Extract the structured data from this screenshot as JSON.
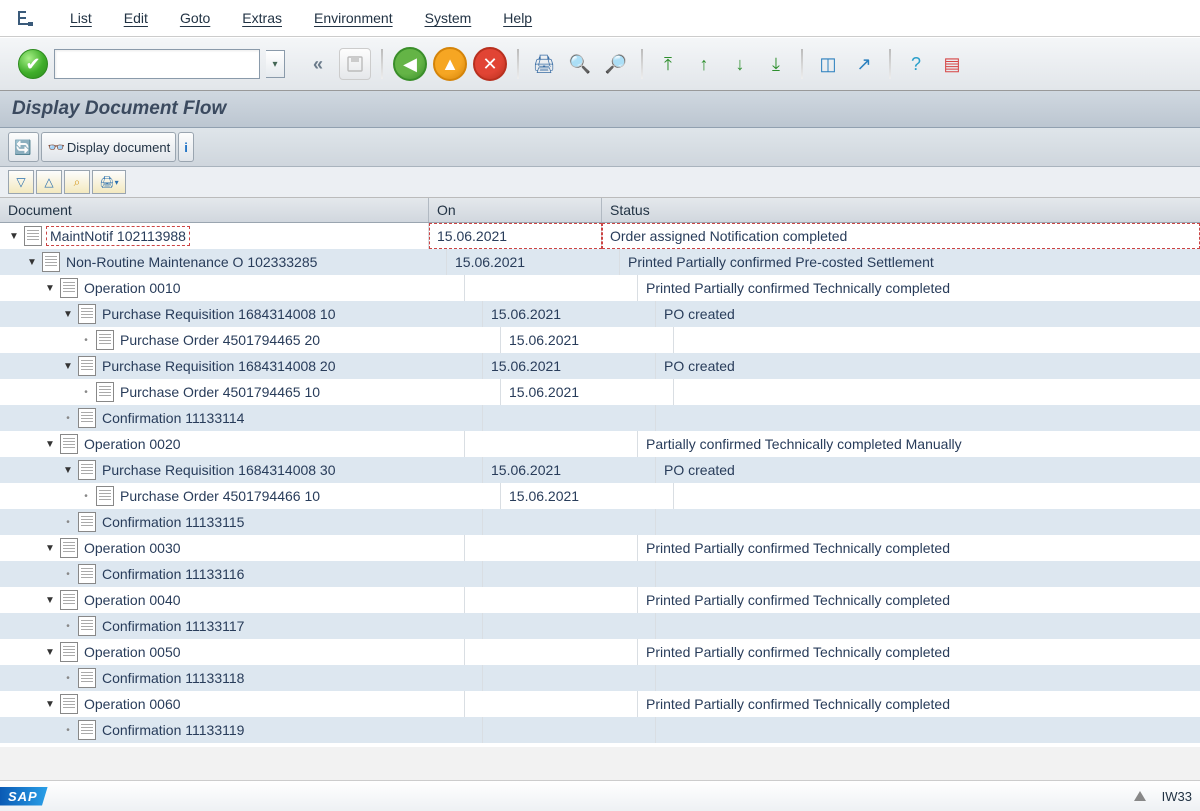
{
  "menu": {
    "items": [
      "List",
      "Edit",
      "Goto",
      "Extras",
      "Environment",
      "System",
      "Help"
    ]
  },
  "toolbar": {
    "collapse": "«",
    "icons": [
      {
        "name": "back-icon",
        "glyph": "◀",
        "bg": "#64b446",
        "bd": "#3a8e2a",
        "style": "round"
      },
      {
        "name": "exit-icon",
        "glyph": "▲",
        "bg": "#f6a623",
        "bd": "#d4840a",
        "style": "round"
      },
      {
        "name": "cancel-icon",
        "glyph": "✕",
        "bg": "#e14434",
        "bd": "#b8301f",
        "style": "round"
      },
      {
        "name": "sep"
      },
      {
        "name": "print-icon",
        "glyph": "🖨",
        "color": "#3a6ea5"
      },
      {
        "name": "find-icon",
        "glyph": "🔍",
        "color": "#3a6ea5"
      },
      {
        "name": "find-next-icon",
        "glyph": "🔎",
        "color": "#3a6ea5"
      },
      {
        "name": "sep"
      },
      {
        "name": "first-icon",
        "glyph": "⤒",
        "color": "#2e8f2e"
      },
      {
        "name": "prev-icon",
        "glyph": "↑",
        "color": "#2e8f2e"
      },
      {
        "name": "next-icon",
        "glyph": "↓",
        "color": "#2e8f2e"
      },
      {
        "name": "last-icon",
        "glyph": "⤓",
        "color": "#2e8f2e"
      },
      {
        "name": "sep"
      },
      {
        "name": "new-session-icon",
        "glyph": "◫",
        "color": "#2a7fbe"
      },
      {
        "name": "shortcut-icon",
        "glyph": "↗",
        "color": "#2a7fbe"
      },
      {
        "name": "sep"
      },
      {
        "name": "help-icon",
        "glyph": "?",
        "color": "#2a9fca"
      },
      {
        "name": "layout-icon",
        "glyph": "▤",
        "color": "#d64545"
      }
    ]
  },
  "title": "Display Document Flow",
  "app_toolbar": {
    "refresh": "",
    "display_doc": "Display document"
  },
  "columns": {
    "doc": "Document",
    "on": "On",
    "status": "Status"
  },
  "rows": [
    {
      "indent": 1,
      "toggle": "▼",
      "label": "MaintNotif 102113988",
      "on": "15.06.2021",
      "status": "Order assigned Notification completed",
      "sel": true,
      "alt": false
    },
    {
      "indent": 2,
      "toggle": "▼",
      "label": "Non-Routine Maintenance O 102333285",
      "on": "15.06.2021",
      "status": "Printed Partially confirmed Pre-costed Settlement",
      "alt": true
    },
    {
      "indent": 3,
      "toggle": "▼",
      "label": "Operation 0010",
      "on": "",
      "status": "Printed Partially confirmed Technically completed",
      "alt": false
    },
    {
      "indent": 4,
      "toggle": "▼",
      "label": "Purchase Requisition 1684314008 10",
      "on": "15.06.2021",
      "status": "PO created",
      "alt": true
    },
    {
      "indent": 5,
      "toggle": "•",
      "label": "Purchase Order 4501794465 20",
      "on": "15.06.2021",
      "status": "",
      "alt": false
    },
    {
      "indent": 4,
      "toggle": "▼",
      "label": "Purchase Requisition 1684314008 20",
      "on": "15.06.2021",
      "status": "PO created",
      "alt": true
    },
    {
      "indent": 5,
      "toggle": "•",
      "label": "Purchase Order 4501794465 10",
      "on": "15.06.2021",
      "status": "",
      "alt": false
    },
    {
      "indent": 4,
      "toggle": "•",
      "label": "Confirmation 11133114",
      "on": "",
      "status": "",
      "alt": true
    },
    {
      "indent": 3,
      "toggle": "▼",
      "label": "Operation 0020",
      "on": "",
      "status": "Partially confirmed Technically completed Manually",
      "alt": false
    },
    {
      "indent": 4,
      "toggle": "▼",
      "label": "Purchase Requisition 1684314008 30",
      "on": "15.06.2021",
      "status": "PO created",
      "alt": true
    },
    {
      "indent": 5,
      "toggle": "•",
      "label": "Purchase Order 4501794466 10",
      "on": "15.06.2021",
      "status": "",
      "alt": false
    },
    {
      "indent": 4,
      "toggle": "•",
      "label": "Confirmation 11133115",
      "on": "",
      "status": "",
      "alt": true
    },
    {
      "indent": 3,
      "toggle": "▼",
      "label": "Operation 0030",
      "on": "",
      "status": "Printed Partially confirmed Technically completed",
      "alt": false
    },
    {
      "indent": 4,
      "toggle": "•",
      "label": "Confirmation 11133116",
      "on": "",
      "status": "",
      "alt": true
    },
    {
      "indent": 3,
      "toggle": "▼",
      "label": "Operation 0040",
      "on": "",
      "status": "Printed Partially confirmed Technically completed",
      "alt": false
    },
    {
      "indent": 4,
      "toggle": "•",
      "label": "Confirmation 11133117",
      "on": "",
      "status": "",
      "alt": true
    },
    {
      "indent": 3,
      "toggle": "▼",
      "label": "Operation 0050",
      "on": "",
      "status": "Printed Partially confirmed Technically completed",
      "alt": false
    },
    {
      "indent": 4,
      "toggle": "•",
      "label": "Confirmation 11133118",
      "on": "",
      "status": "",
      "alt": true
    },
    {
      "indent": 3,
      "toggle": "▼",
      "label": "Operation 0060",
      "on": "",
      "status": "Printed Partially confirmed Technically completed",
      "alt": false
    },
    {
      "indent": 4,
      "toggle": "•",
      "label": "Confirmation 11133119",
      "on": "",
      "status": "",
      "alt": true
    }
  ],
  "statusbar": {
    "tcode": "IW33"
  }
}
